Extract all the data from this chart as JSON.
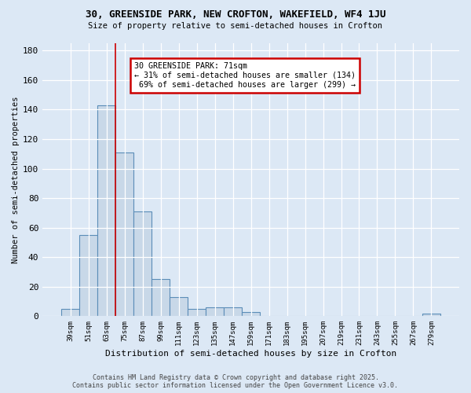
{
  "title_line1": "30, GREENSIDE PARK, NEW CROFTON, WAKEFIELD, WF4 1JU",
  "title_line2": "Size of property relative to semi-detached houses in Crofton",
  "xlabel": "Distribution of semi-detached houses by size in Crofton",
  "ylabel": "Number of semi-detached properties",
  "categories": [
    "39sqm",
    "51sqm",
    "63sqm",
    "75sqm",
    "87sqm",
    "99sqm",
    "111sqm",
    "123sqm",
    "135sqm",
    "147sqm",
    "159sqm",
    "171sqm",
    "183sqm",
    "195sqm",
    "207sqm",
    "219sqm",
    "231sqm",
    "243sqm",
    "255sqm",
    "267sqm",
    "279sqm"
  ],
  "values": [
    5,
    55,
    143,
    111,
    71,
    25,
    13,
    5,
    6,
    6,
    3,
    0,
    0,
    0,
    0,
    0,
    0,
    0,
    0,
    0,
    2
  ],
  "bar_color": "#c8d8e8",
  "bar_edge_color": "#5b8db8",
  "subject_bar_index": 2,
  "redline_x": 2.5,
  "annotation_text": "30 GREENSIDE PARK: 71sqm\n← 31% of semi-detached houses are smaller (134)\n 69% of semi-detached houses are larger (299) →",
  "annotation_box_color": "#ffffff",
  "annotation_box_edge": "#cc0000",
  "redline_color": "#cc0000",
  "background_color": "#dce8f5",
  "footer_line1": "Contains HM Land Registry data © Crown copyright and database right 2025.",
  "footer_line2": "Contains public sector information licensed under the Open Government Licence v3.0.",
  "ylim": [
    0,
    185
  ],
  "yticks": [
    0,
    20,
    40,
    60,
    80,
    100,
    120,
    140,
    160,
    180
  ]
}
